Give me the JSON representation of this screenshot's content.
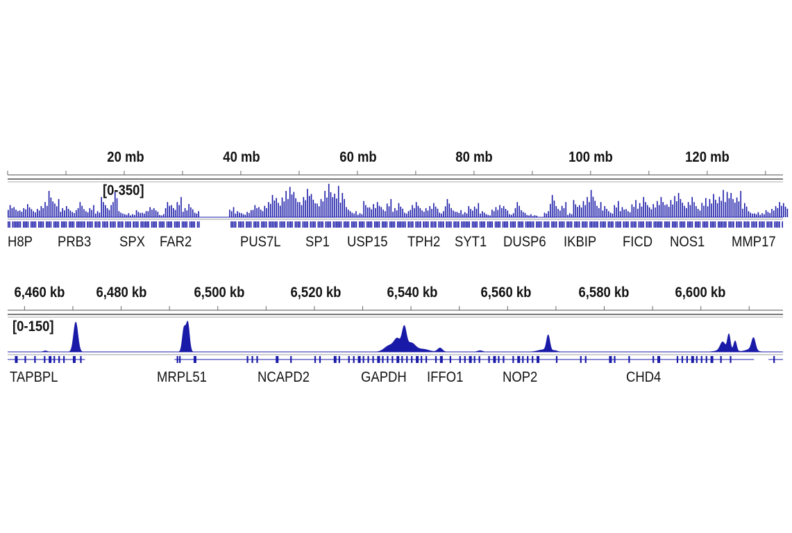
{
  "chart_data": [
    {
      "type": "area",
      "panel": "chromosome overview",
      "x_unit": "mb",
      "xlim": [
        0,
        133
      ],
      "tick_labels": [
        "20 mb",
        "40 mb",
        "60 mb",
        "80 mb",
        "100 mb",
        "120 mb"
      ],
      "tick_values": [
        20,
        40,
        60,
        80,
        100,
        120
      ],
      "data_range_label": "[0-350]",
      "ylim": [
        0,
        350
      ],
      "bin_mb": 1,
      "values": [
        120,
        100,
        90,
        130,
        80,
        110,
        150,
        260,
        180,
        90,
        110,
        70,
        150,
        80,
        120,
        60,
        200,
        120,
        250,
        60,
        40,
        30,
        70,
        60,
        100,
        90,
        30,
        150,
        120,
        200,
        90,
        130,
        60,
        0,
        0,
        0,
        0,
        0,
        100,
        60,
        40,
        70,
        120,
        100,
        150,
        220,
        190,
        260,
        300,
        250,
        200,
        280,
        230,
        180,
        260,
        330,
        310,
        240,
        100,
        60,
        40,
        160,
        130,
        150,
        100,
        180,
        90,
        140,
        60,
        120,
        150,
        90,
        110,
        140,
        60,
        180,
        90,
        70,
        50,
        110,
        140,
        60,
        30,
        100,
        120,
        110,
        40,
        150,
        70,
        30,
        20,
        0,
        60,
        220,
        110,
        150,
        40,
        170,
        160,
        200,
        270,
        150,
        110,
        60,
        160,
        100,
        80,
        170,
        140,
        200,
        130,
        160,
        200,
        170,
        210,
        240,
        150,
        200,
        110,
        190,
        180,
        230,
        270,
        250,
        240,
        260,
        140,
        60,
        50,
        40,
        70,
        110,
        150,
        140
      ],
      "gene_track_gaps_mb": [
        [
          33,
          38
        ]
      ],
      "genes": [
        "H8P",
        "PRB3",
        "SPX",
        "FAR2",
        "PUS7L",
        "SP1",
        "USP15",
        "TPH2",
        "SYT1",
        "DUSP6",
        "IKBIP",
        "FICD",
        "NOS1",
        "MMP17"
      ],
      "color": "#1a1aa8"
    },
    {
      "type": "area",
      "panel": "zoomed region",
      "x_unit": "kb",
      "xlim": [
        6456.5,
        6617
      ],
      "tick_labels": [
        "6,460 kb",
        "6,480 kb",
        "6,500 kb",
        "6,520 kb",
        "6,540 kb",
        "6,560 kb",
        "6,580 kb",
        "6,600 kb"
      ],
      "tick_values": [
        6460,
        6480,
        6500,
        6520,
        6540,
        6560,
        6580,
        6600
      ],
      "data_range_label": "[0-150]",
      "ylim": [
        0,
        150
      ],
      "peaks": [
        {
          "pos": 6464.3,
          "height": 5,
          "width": 0.4
        },
        {
          "pos": 6470.6,
          "height": 135,
          "width": 0.45
        },
        {
          "pos": 6493.0,
          "height": 105,
          "width": 0.35
        },
        {
          "pos": 6493.8,
          "height": 130,
          "width": 0.35
        },
        {
          "pos": 6535.5,
          "height": 28,
          "width": 1.0
        },
        {
          "pos": 6537.2,
          "height": 55,
          "width": 0.7
        },
        {
          "pos": 6538.6,
          "height": 100,
          "width": 0.45
        },
        {
          "pos": 6540.0,
          "height": 40,
          "width": 0.9
        },
        {
          "pos": 6542.5,
          "height": 12,
          "width": 1.2
        },
        {
          "pos": 6546.0,
          "height": 18,
          "width": 0.5
        },
        {
          "pos": 6554.3,
          "height": 6,
          "width": 0.5
        },
        {
          "pos": 6567.5,
          "height": 10,
          "width": 1.2
        },
        {
          "pos": 6568.4,
          "height": 70,
          "width": 0.35
        },
        {
          "pos": 6569.8,
          "height": 5,
          "width": 0.5
        },
        {
          "pos": 6604.5,
          "height": 35,
          "width": 0.5
        },
        {
          "pos": 6605.2,
          "height": 12,
          "width": 1.5
        },
        {
          "pos": 6605.8,
          "height": 70,
          "width": 0.3
        },
        {
          "pos": 6607.1,
          "height": 45,
          "width": 0.3
        },
        {
          "pos": 6610.9,
          "height": 55,
          "width": 0.4
        },
        {
          "pos": 6610.3,
          "height": 12,
          "width": 1.0
        }
      ],
      "gene_segments_kb": [
        [
          6456.5,
          6472.5
        ],
        [
          6491,
          6611
        ],
        [
          6614,
          6617
        ]
      ],
      "exons_kb": [
        6458,
        6460,
        6462,
        6464,
        6465,
        6466,
        6467,
        6468,
        6470,
        6471.5,
        6491.5,
        6492,
        6495,
        6506,
        6507,
        6508,
        6512,
        6515,
        6520,
        6521,
        6524,
        6525,
        6527,
        6528,
        6529,
        6530,
        6531,
        6532,
        6533,
        6534,
        6535,
        6536,
        6537,
        6538,
        6539,
        6540,
        6541,
        6542,
        6543,
        6545,
        6546,
        6548,
        6550,
        6551,
        6552,
        6553,
        6554,
        6556,
        6557,
        6558,
        6559,
        6561,
        6562,
        6563,
        6564,
        6565,
        6566,
        6570,
        6575,
        6576,
        6581,
        6582,
        6585,
        6590,
        6591,
        6595,
        6596,
        6597,
        6598,
        6599,
        6600,
        6601,
        6602,
        6604,
        6606,
        6615
      ],
      "genes": [
        "TAPBPL",
        "MRPL51",
        "NCAPD2",
        "GAPDH",
        "IFFO1",
        "NOP2",
        "CHD4"
      ],
      "color": "#1a1aa8"
    }
  ]
}
